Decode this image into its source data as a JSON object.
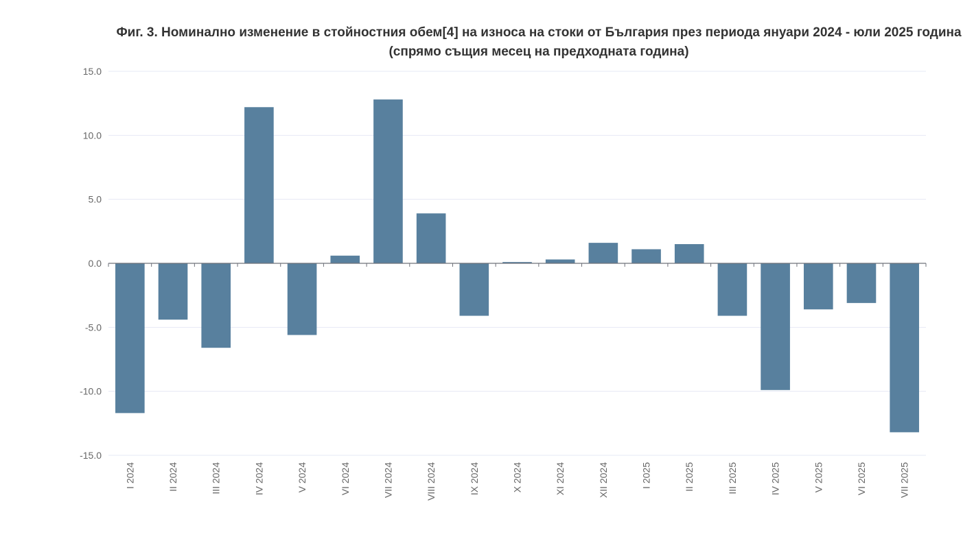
{
  "chart_data": {
    "type": "bar",
    "title": "Фиг. 3. Номинално изменение в стойностния обем[4] на износа на стоки от България през периода януари 2024 - юли 2025 година (спрямо същия месец на предходната година)",
    "xlabel": "",
    "ylabel": "",
    "ylim": [
      -15,
      15
    ],
    "yticks": [
      "15.0",
      "10.0",
      "5.0",
      "0.0",
      "-5.0",
      "-10.0",
      "-15.0"
    ],
    "ytick_values": [
      15,
      10,
      5,
      0,
      -5,
      -10,
      -15
    ],
    "categories": [
      "I 2024",
      "II 2024",
      "III 2024",
      "IV 2024",
      "V 2024",
      "VI 2024",
      "VII 2024",
      "VIII 2024",
      "IX 2024",
      "X 2024",
      "XI 2024",
      "XII 2024",
      "I 2025",
      "II 2025",
      "III 2025",
      "IV 2025",
      "V 2025",
      "VI 2025",
      "VII 2025"
    ],
    "values": [
      -11.7,
      -4.4,
      -6.6,
      12.2,
      -5.6,
      0.6,
      12.8,
      3.9,
      -4.1,
      0.1,
      0.3,
      1.6,
      1.1,
      1.5,
      -4.1,
      -9.9,
      -3.6,
      -3.1,
      -13.2
    ],
    "grid": true,
    "legend": "none",
    "bar_color": "#58809e",
    "grid_color": "#e6e8f5",
    "axis_color": "#6e7079"
  }
}
